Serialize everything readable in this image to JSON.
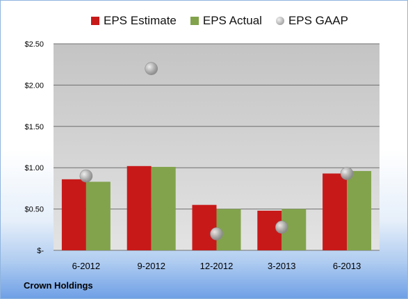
{
  "chart_data": {
    "type": "bar",
    "categories": [
      "6-2012",
      "9-2012",
      "12-2012",
      "3-2013",
      "6-2013"
    ],
    "series": [
      {
        "name": "EPS Estimate",
        "color": "#c81919",
        "values": [
          0.86,
          1.02,
          0.55,
          0.48,
          0.93
        ]
      },
      {
        "name": "EPS Actual",
        "color": "#82a34c",
        "values": [
          0.83,
          1.01,
          0.5,
          0.5,
          0.96
        ]
      },
      {
        "name": "EPS GAAP",
        "type": "scatter",
        "color": "#a8a8a8",
        "values": [
          0.9,
          2.2,
          0.2,
          0.28,
          0.93
        ]
      }
    ],
    "yticks": [
      "$-",
      "$0.50",
      "$1.00",
      "$1.50",
      "$2.00",
      "$2.50"
    ],
    "ylim": [
      0,
      2.5
    ],
    "grid": true,
    "legend_position": "top"
  },
  "footer": {
    "company": "Crown Holdings"
  }
}
